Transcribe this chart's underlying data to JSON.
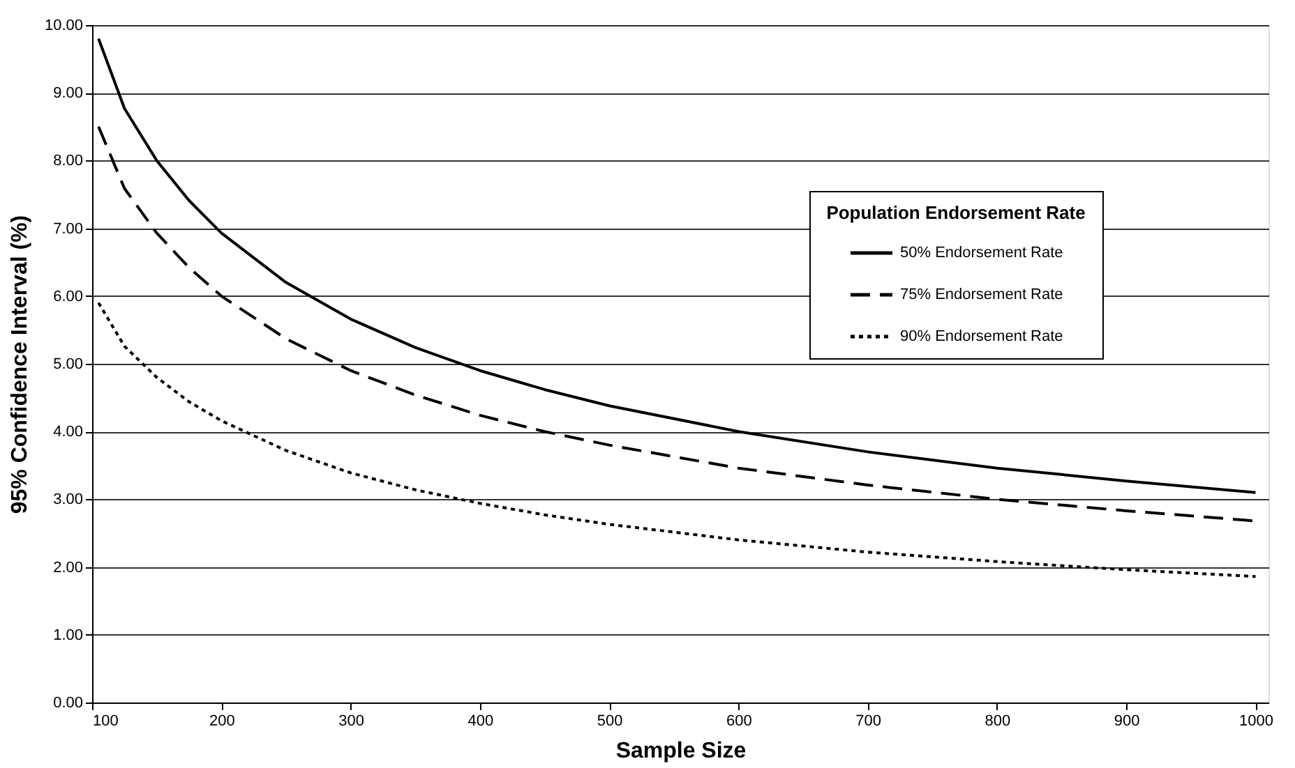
{
  "chart_data": {
    "type": "line",
    "xlabel": "Sample Size",
    "ylabel": "95% Confidence Interval (%)",
    "legend_title": "Population Endorsement  Rate",
    "x": [
      105,
      125,
      150,
      175,
      200,
      250,
      300,
      350,
      400,
      450,
      500,
      600,
      700,
      800,
      900,
      1000
    ],
    "series": [
      {
        "name": "50% Endorsement Rate",
        "color": "#000000",
        "line_style": "solid",
        "values": [
          9.8,
          8.77,
          8.0,
          7.41,
          6.93,
          6.2,
          5.66,
          5.24,
          4.9,
          4.62,
          4.38,
          4.0,
          3.7,
          3.46,
          3.27,
          3.1
        ]
      },
      {
        "name": "75% Endorsement Rate",
        "color": "#000000",
        "line_style": "dashed",
        "values": [
          8.5,
          7.59,
          6.93,
          6.42,
          6.0,
          5.37,
          4.9,
          4.54,
          4.24,
          4.0,
          3.8,
          3.46,
          3.21,
          3.0,
          2.83,
          2.68
        ]
      },
      {
        "name": "90% Endorsement Rate",
        "color": "#000000",
        "line_style": "dotted",
        "values": [
          5.9,
          5.26,
          4.8,
          4.44,
          4.16,
          3.72,
          3.39,
          3.14,
          2.94,
          2.77,
          2.63,
          2.4,
          2.22,
          2.08,
          1.96,
          1.86
        ]
      }
    ],
    "xlim": [
      100,
      1010
    ],
    "xticks": [
      100,
      200,
      300,
      400,
      500,
      600,
      700,
      800,
      900,
      1000
    ],
    "ylim": [
      0,
      10
    ],
    "yticks": [
      {
        "value": 0,
        "label": "0.00"
      },
      {
        "value": 1,
        "label": "1.00"
      },
      {
        "value": 2,
        "label": "2.00"
      },
      {
        "value": 3,
        "label": "3.00"
      },
      {
        "value": 4,
        "label": "4.00"
      },
      {
        "value": 5,
        "label": "5.00"
      },
      {
        "value": 6,
        "label": "6.00"
      },
      {
        "value": 7,
        "label": "7.00"
      },
      {
        "value": 8,
        "label": "8.00"
      },
      {
        "value": 9,
        "label": "9.00"
      },
      {
        "value": 10,
        "label": "10.00"
      }
    ],
    "grid": "y",
    "legend": "right",
    "marker": "none"
  }
}
